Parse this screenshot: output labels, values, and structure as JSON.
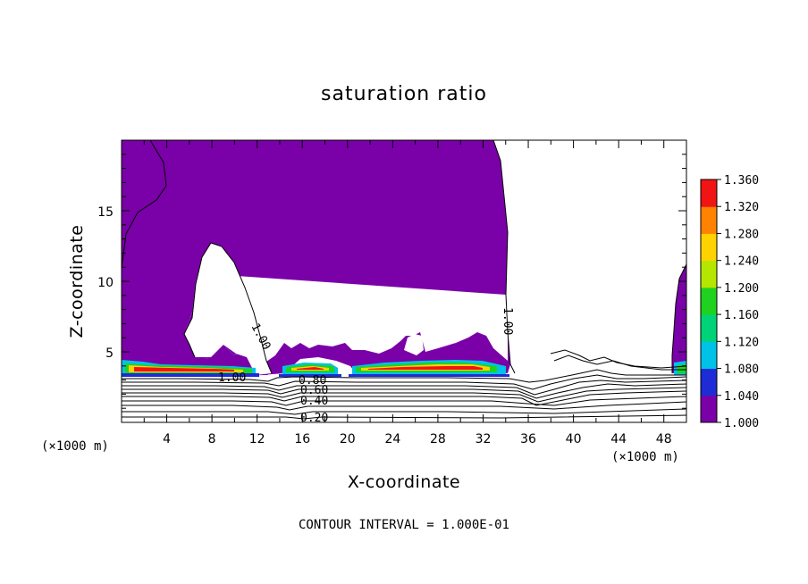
{
  "chart_data": {
    "type": "contour",
    "title": "saturation ratio",
    "xlabel": "X-coordinate",
    "ylabel": "Z-coordinate",
    "x_unit": "(×1000 m)",
    "y_unit": "(×1000 m)",
    "xlim": [
      0,
      50
    ],
    "ylim": [
      0,
      20
    ],
    "x_ticks": [
      "4",
      "8",
      "12",
      "16",
      "20",
      "24",
      "28",
      "32",
      "36",
      "40",
      "44",
      "48"
    ],
    "y_ticks": [
      "5",
      "10",
      "15"
    ],
    "colorbar": {
      "levels": [
        "1.000",
        "1.040",
        "1.080",
        "1.120",
        "1.160",
        "1.200",
        "1.240",
        "1.280",
        "1.320",
        "1.360"
      ],
      "colors": [
        "#7a00a8",
        "#1e2cd6",
        "#00c2e6",
        "#00d278",
        "#1fd21f",
        "#b4e600",
        "#ffd200",
        "#ff8200",
        "#f01414",
        "#f8a0a0"
      ]
    },
    "contour_labels": [
      "1.00",
      "1.00",
      "1.00",
      "0.80",
      "0.60",
      "0.40",
      "0.20"
    ],
    "footer": "CONTOUR INTERVAL = 1.000E-01"
  }
}
